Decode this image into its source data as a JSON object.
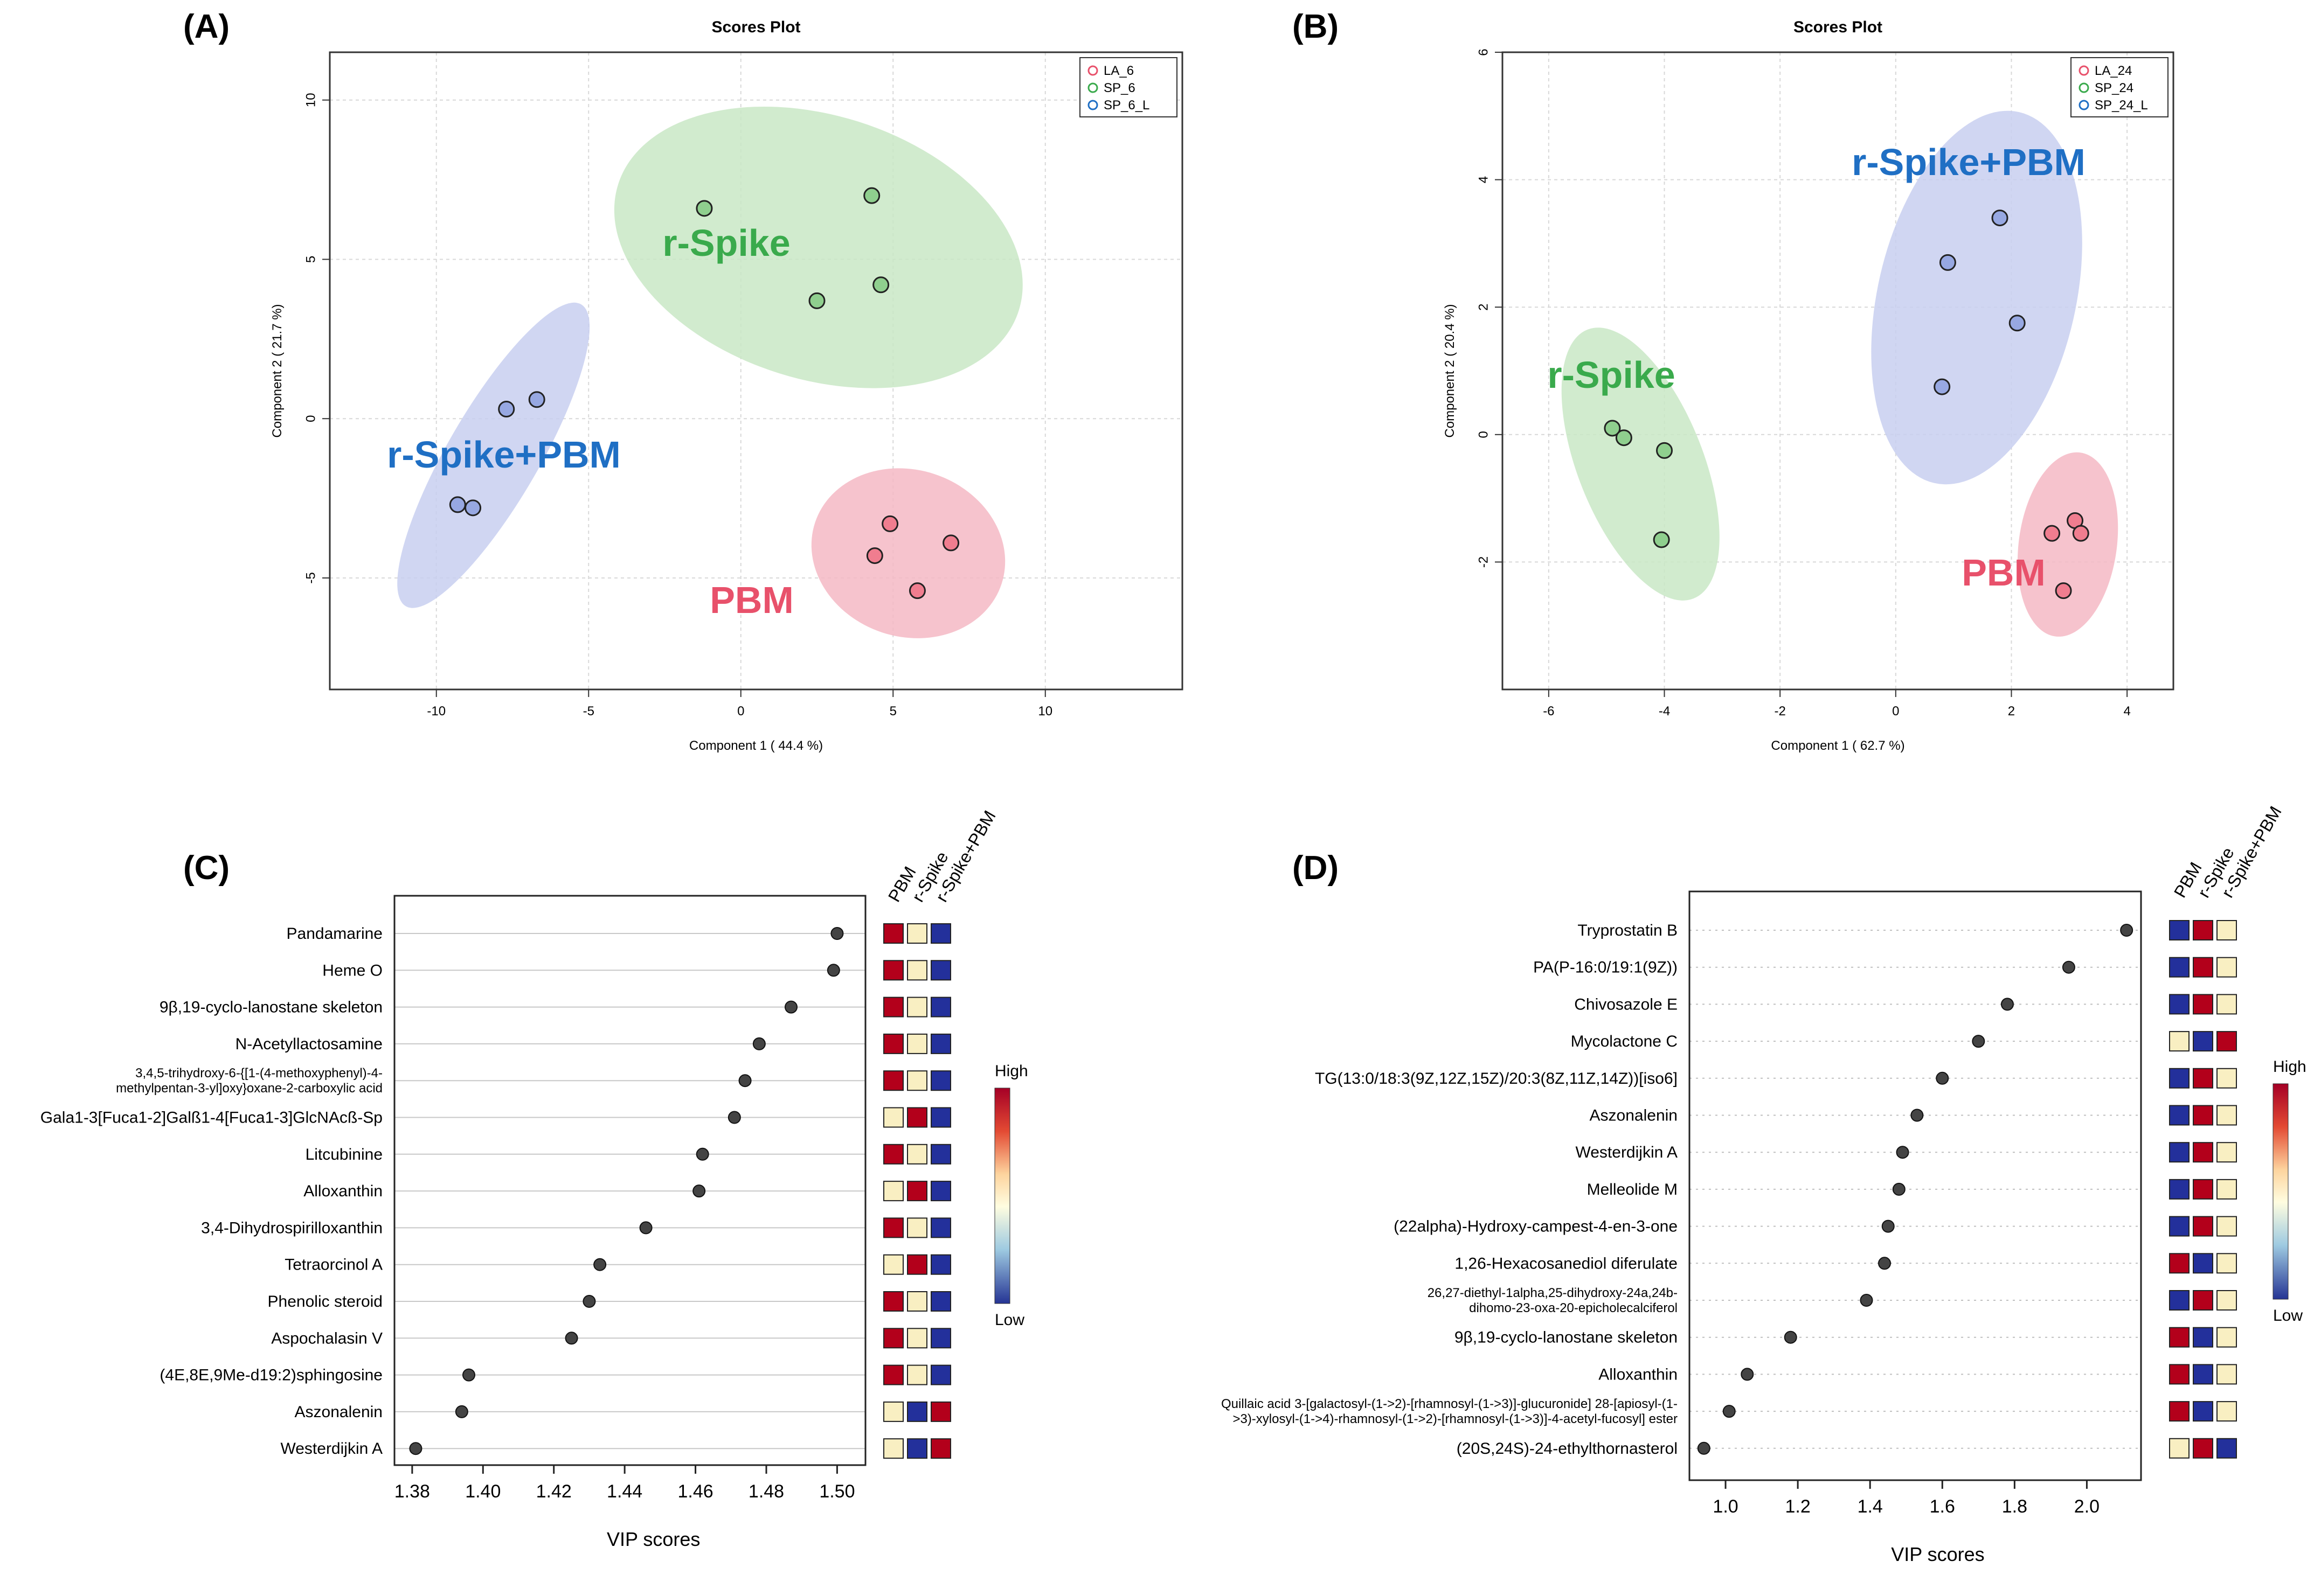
{
  "chart_data": [
    {
      "panel": "(A)",
      "type": "scatter",
      "title": "Scores Plot",
      "xlabel": "Component 1 ( 44.4 %)",
      "ylabel": "Component 2 ( 21.7 %)",
      "xlim": [
        -13.5,
        14.5
      ],
      "ylim": [
        -8.5,
        11.5
      ],
      "xticks": [
        -10,
        -5,
        0,
        5,
        10
      ],
      "yticks": [
        -5,
        0,
        5,
        10
      ],
      "legend": {
        "position": "top-right",
        "entries": [
          "LA_6",
          "SP_6",
          "SP_6_L"
        ]
      },
      "series": [
        {
          "name": "LA_6",
          "label": "PBM",
          "color": "#e8516b",
          "fill": "#f07d8f",
          "ellipse_fill": "#f5b8c4",
          "points": [
            [
              4.9,
              -3.3
            ],
            [
              6.9,
              -3.9
            ],
            [
              4.4,
              -4.3
            ],
            [
              5.8,
              -5.4
            ]
          ]
        },
        {
          "name": "SP_6",
          "label": "r-Spike",
          "color": "#3aaa4c",
          "fill": "#8fcf8e",
          "ellipse_fill": "#c9e8c6",
          "points": [
            [
              -1.2,
              6.6
            ],
            [
              4.3,
              7.0
            ],
            [
              4.6,
              4.2
            ],
            [
              2.5,
              3.7
            ]
          ]
        },
        {
          "name": "SP_6_L",
          "label": "r-Spike+PBM",
          "color": "#1f6fc4",
          "fill": "#97a8e2",
          "ellipse_fill": "#c8cff0",
          "points": [
            [
              -6.7,
              0.6
            ],
            [
              -7.7,
              0.3
            ],
            [
              -9.3,
              -2.7
            ],
            [
              -8.8,
              -2.8
            ]
          ]
        }
      ]
    },
    {
      "panel": "(B)",
      "type": "scatter",
      "title": "Scores Plot",
      "xlabel": "Component 1 ( 62.7 %)",
      "ylabel": "Component 2 ( 20.4 %)",
      "xlim": [
        -6.8,
        4.8
      ],
      "ylim": [
        -4.0,
        6.0
      ],
      "xticks": [
        -6,
        -4,
        -2,
        0,
        2,
        4
      ],
      "yticks": [
        -2,
        0,
        2,
        4,
        6
      ],
      "legend": {
        "position": "top-right",
        "entries": [
          "LA_24",
          "SP_24",
          "SP_24_L"
        ]
      },
      "series": [
        {
          "name": "LA_24",
          "label": "PBM",
          "color": "#e8516b",
          "fill": "#f07d8f",
          "ellipse_fill": "#f5b8c4",
          "points": [
            [
              3.1,
              -1.35
            ],
            [
              3.2,
              -1.55
            ],
            [
              2.7,
              -1.55
            ],
            [
              2.9,
              -2.45
            ]
          ]
        },
        {
          "name": "SP_24",
          "label": "r-Spike",
          "color": "#3aaa4c",
          "fill": "#8fcf8e",
          "ellipse_fill": "#c9e8c6",
          "points": [
            [
              -4.9,
              0.1
            ],
            [
              -4.7,
              -0.05
            ],
            [
              -4.0,
              -0.25
            ],
            [
              -4.05,
              -1.65
            ]
          ]
        },
        {
          "name": "SP_24_L",
          "label": "r-Spike+PBM",
          "color": "#1f6fc4",
          "fill": "#97a8e2",
          "ellipse_fill": "#c8cff0",
          "points": [
            [
              1.8,
              3.4
            ],
            [
              0.9,
              2.7
            ],
            [
              2.1,
              1.75
            ],
            [
              0.8,
              0.75
            ]
          ]
        }
      ]
    },
    {
      "panel": "(C)",
      "type": "dot",
      "xlabel": "VIP scores",
      "xlim": [
        1.375,
        1.508
      ],
      "xticks": [
        1.38,
        1.4,
        1.42,
        1.44,
        1.46,
        1.48,
        1.5
      ],
      "tick_labels": [
        "1.38",
        "1.40",
        "1.42",
        "1.44",
        "1.46",
        "1.48",
        "1.50"
      ],
      "heat_columns": [
        "PBM",
        "r-Spike",
        "r-Spike+PBM"
      ],
      "heat_legend": [
        "High",
        "Low"
      ],
      "items": [
        {
          "name": [
            "Pandamarine"
          ],
          "value": 1.5,
          "heat": [
            "H",
            "M",
            "L"
          ]
        },
        {
          "name": [
            "Heme O"
          ],
          "value": 1.499,
          "heat": [
            "H",
            "M",
            "L"
          ]
        },
        {
          "name": [
            "9β,19-cyclo-lanostane skeleton"
          ],
          "value": 1.487,
          "heat": [
            "H",
            "M",
            "L"
          ]
        },
        {
          "name": [
            "N-Acetyllactosamine"
          ],
          "value": 1.478,
          "heat": [
            "H",
            "M",
            "L"
          ]
        },
        {
          "name": [
            "3,4,5-trihydroxy-6-{[1-(4-methoxyphenyl)-4-",
            "methylpentan-3-yl]oxy}oxane-2-carboxylic acid"
          ],
          "value": 1.474,
          "heat": [
            "H",
            "M",
            "L"
          ]
        },
        {
          "name": [
            "Gala1-3[Fuca1-2]Galß1-4[Fuca1-3]GlcNAcß-Sp"
          ],
          "value": 1.471,
          "heat": [
            "M",
            "H",
            "L"
          ]
        },
        {
          "name": [
            "Litcubinine"
          ],
          "value": 1.462,
          "heat": [
            "H",
            "M",
            "L"
          ]
        },
        {
          "name": [
            "Alloxanthin"
          ],
          "value": 1.461,
          "heat": [
            "M",
            "H",
            "L"
          ]
        },
        {
          "name": [
            "3,4-Dihydrospirilloxanthin"
          ],
          "value": 1.446,
          "heat": [
            "H",
            "M",
            "L"
          ]
        },
        {
          "name": [
            "Tetraorcinol A"
          ],
          "value": 1.433,
          "heat": [
            "M",
            "H",
            "L"
          ]
        },
        {
          "name": [
            "Phenolic steroid"
          ],
          "value": 1.43,
          "heat": [
            "H",
            "M",
            "L"
          ]
        },
        {
          "name": [
            "Aspochalasin V"
          ],
          "value": 1.425,
          "heat": [
            "H",
            "M",
            "L"
          ]
        },
        {
          "name": [
            "(4E,8E,9Me-d19:2)sphingosine"
          ],
          "value": 1.396,
          "heat": [
            "H",
            "M",
            "L"
          ]
        },
        {
          "name": [
            "Aszonalenin"
          ],
          "value": 1.394,
          "heat": [
            "M",
            "L",
            "H"
          ]
        },
        {
          "name": [
            "Westerdijkin A"
          ],
          "value": 1.381,
          "heat": [
            "M",
            "L",
            "H"
          ]
        }
      ]
    },
    {
      "panel": "(D)",
      "type": "dot",
      "xlabel": "VIP scores",
      "xlim": [
        0.9,
        2.15
      ],
      "xticks": [
        1.0,
        1.2,
        1.4,
        1.6,
        1.8,
        2.0
      ],
      "tick_labels": [
        "1.0",
        "1.2",
        "1.4",
        "1.6",
        "1.8",
        "2.0"
      ],
      "heat_columns": [
        "PBM",
        "r-Spike",
        "r-Spike+PBM"
      ],
      "heat_legend": [
        "High",
        "Low"
      ],
      "items": [
        {
          "name": [
            "Tryprostatin B"
          ],
          "value": 2.11,
          "heat": [
            "L",
            "H",
            "M"
          ]
        },
        {
          "name": [
            "PA(P-16:0/19:1(9Z))"
          ],
          "value": 1.95,
          "heat": [
            "L",
            "H",
            "M"
          ]
        },
        {
          "name": [
            "Chivosazole E"
          ],
          "value": 1.78,
          "heat": [
            "L",
            "H",
            "M"
          ]
        },
        {
          "name": [
            "Mycolactone C"
          ],
          "value": 1.7,
          "heat": [
            "M",
            "L",
            "H"
          ]
        },
        {
          "name": [
            "TG(13:0/18:3(9Z,12Z,15Z)/20:3(8Z,11Z,14Z))[iso6]"
          ],
          "value": 1.6,
          "heat": [
            "L",
            "H",
            "M"
          ]
        },
        {
          "name": [
            "Aszonalenin"
          ],
          "value": 1.53,
          "heat": [
            "L",
            "H",
            "M"
          ]
        },
        {
          "name": [
            "Westerdijkin A"
          ],
          "value": 1.49,
          "heat": [
            "L",
            "H",
            "M"
          ]
        },
        {
          "name": [
            "Melleolide M"
          ],
          "value": 1.48,
          "heat": [
            "L",
            "H",
            "M"
          ]
        },
        {
          "name": [
            "(22alpha)-Hydroxy-campest-4-en-3-one"
          ],
          "value": 1.45,
          "heat": [
            "L",
            "H",
            "M"
          ]
        },
        {
          "name": [
            "1,26-Hexacosanediol diferulate"
          ],
          "value": 1.44,
          "heat": [
            "H",
            "L",
            "M"
          ]
        },
        {
          "name": [
            "26,27-diethyl-1alpha,25-dihydroxy-24a,24b-",
            "dihomo-23-oxa-20-epicholecalciferol"
          ],
          "value": 1.39,
          "heat": [
            "L",
            "H",
            "M"
          ]
        },
        {
          "name": [
            "9β,19-cyclo-lanostane skeleton"
          ],
          "value": 1.18,
          "heat": [
            "H",
            "L",
            "M"
          ]
        },
        {
          "name": [
            "Alloxanthin"
          ],
          "value": 1.06,
          "heat": [
            "H",
            "L",
            "M"
          ]
        },
        {
          "name": [
            "Quillaic acid 3-[galactosyl-(1->2)-[rhamnosyl-(1->3)]-glucuronide] 28-[apiosyl-(1-",
            ">3)-xylosyl-(1->4)-rhamnosyl-(1->2)-[rhamnosyl-(1->3)]-4-acetyl-fucosyl] ester"
          ],
          "value": 1.01,
          "heat": [
            "H",
            "L",
            "M"
          ]
        },
        {
          "name": [
            "(20S,24S)-24-ethylthornasterol"
          ],
          "value": 0.94,
          "heat": [
            "M",
            "H",
            "L"
          ]
        }
      ]
    }
  ],
  "colors": {
    "high": "#b3001b",
    "mid": "#f9efc2",
    "low": "#23309b"
  }
}
